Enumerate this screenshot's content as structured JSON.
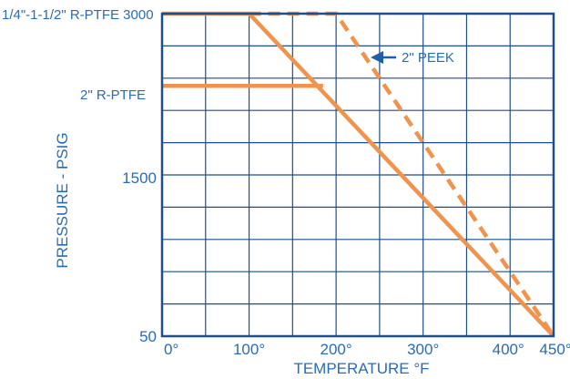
{
  "chart_data": {
    "type": "line",
    "title": "",
    "xlabel": "TEMPERATURE °F",
    "ylabel": "PRESSURE - PSIG",
    "xlim": [
      0,
      450
    ],
    "ylim": [
      50,
      3000
    ],
    "x_ticks": [
      {
        "value": 0,
        "label": "0°"
      },
      {
        "value": 100,
        "label": "100°"
      },
      {
        "value": 200,
        "label": "200°"
      },
      {
        "value": 300,
        "label": "300°"
      },
      {
        "value": 400,
        "label": "400°"
      },
      {
        "value": 450,
        "label": "450°"
      }
    ],
    "y_ticks": [
      {
        "value": 50,
        "label": "50"
      },
      {
        "value": 1500,
        "label": "1500"
      }
    ],
    "grid": true,
    "grid_x_step": 50,
    "grid_y_lines": 10,
    "line_color": "#f0944d",
    "frame_color": "#1f4e8c",
    "text_color": "#2b6cb0",
    "series": [
      {
        "name": "1/4\"-1-1/2\" R-PTFE 3000",
        "style": "solid",
        "points": [
          [
            0,
            3000
          ],
          [
            100,
            3000
          ],
          [
            450,
            50
          ]
        ]
      },
      {
        "name": "2\" R-PTFE",
        "style": "solid",
        "points": [
          [
            0,
            2340
          ],
          [
            185,
            2340
          ]
        ]
      },
      {
        "name": "2\" PEEK",
        "style": "dashed",
        "points": [
          [
            100,
            3000
          ],
          [
            200,
            3000
          ],
          [
            450,
            50
          ]
        ]
      }
    ]
  }
}
